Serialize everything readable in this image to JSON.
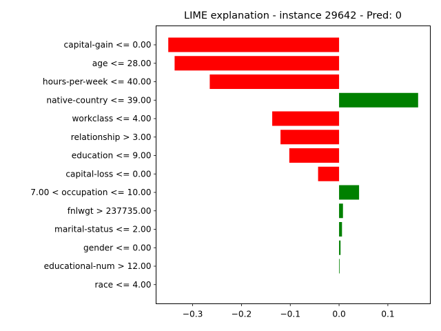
{
  "chart_data": {
    "type": "bar",
    "orientation": "horizontal",
    "title": "LIME explanation - instance 29642 - Pred: 0",
    "xlabel": "",
    "ylabel": "",
    "xlim": [
      -0.375,
      0.187
    ],
    "x_ticks": [
      -0.3,
      -0.2,
      -0.1,
      0.0,
      0.1
    ],
    "x_tick_labels": [
      "−0.3",
      "−0.2",
      "−0.1",
      "0.0",
      "0.1"
    ],
    "grid": false,
    "colors": {
      "negative": "#ff0000",
      "positive": "#008000"
    },
    "categories": [
      "capital-gain <= 0.00",
      "age <= 28.00",
      "hours-per-week <= 40.00",
      "native-country <= 39.00",
      "workclass <= 4.00",
      "relationship > 3.00",
      "education <= 9.00",
      "capital-loss <= 0.00",
      "7.00 < occupation <= 10.00",
      "fnlwgt > 237735.00",
      "marital-status <= 2.00",
      "gender <= 0.00",
      "educational-num > 12.00",
      "race <= 4.00"
    ],
    "values": [
      -0.35,
      -0.337,
      -0.265,
      0.162,
      -0.137,
      -0.12,
      -0.102,
      -0.043,
      0.041,
      0.008,
      0.006,
      0.003,
      0.001,
      0.0
    ]
  }
}
